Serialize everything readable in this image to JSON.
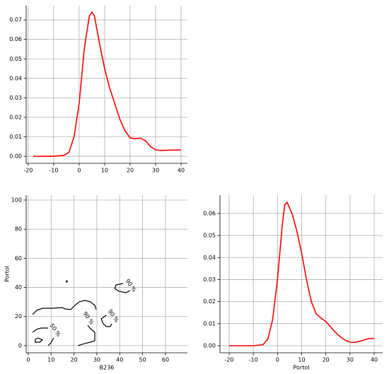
{
  "chart_data": [
    {
      "type": "line",
      "color": "#ff0000",
      "grid": true,
      "x": [
        -18,
        -10,
        -6,
        -4,
        -2,
        0,
        2,
        4,
        5,
        6,
        8,
        10,
        12,
        14,
        16,
        18,
        20,
        22,
        24,
        26,
        28,
        30,
        32,
        36,
        40
      ],
      "values": [
        0,
        0,
        0.0005,
        0.002,
        0.01,
        0.027,
        0.055,
        0.072,
        0.074,
        0.072,
        0.058,
        0.045,
        0.035,
        0.027,
        0.019,
        0.013,
        0.0095,
        0.009,
        0.0093,
        0.008,
        0.005,
        0.0033,
        0.003,
        0.0032,
        0.0033
      ],
      "xlim": [
        -20.8,
        42.5
      ],
      "ylim": [
        -0.0036,
        0.0773
      ],
      "xticks": [
        -20,
        -10,
        0,
        10,
        20,
        30,
        40
      ],
      "yticks": [
        {
          "value": 0,
          "label": "0.00"
        },
        {
          "value": 0.01,
          "label": "0.01"
        },
        {
          "value": 0.02,
          "label": "0.02"
        },
        {
          "value": 0.03,
          "label": "0.03"
        },
        {
          "value": 0.04,
          "label": "0.04"
        },
        {
          "value": 0.05,
          "label": "0.05"
        },
        {
          "value": 0.06,
          "label": "0.06"
        },
        {
          "value": 0.07,
          "label": "0.07"
        }
      ]
    },
    {
      "type": "contour",
      "color": "#000000",
      "grid": true,
      "x_label": "B236",
      "y_label": "Portol",
      "contours": [
        {
          "x": [
            1.9,
            3.7,
            6.2,
            10.8,
            14.9,
            16.1,
            18.6,
            20.4,
            22.3,
            24.8,
            27.2,
            29.1,
            29.7
          ],
          "y": [
            21.4,
            24.3,
            25.7,
            25.7,
            26.2,
            25.2,
            24.8,
            27.7,
            30.1,
            31.1,
            30.1,
            27.7,
            24.8
          ]
        },
        {
          "x": [
            16.5,
            16.9,
            17.1,
            16.7,
            16.5
          ],
          "y": [
            44,
            44.6,
            44,
            43.6,
            44
          ]
        },
        {
          "x": [
            1.9,
            3.7,
            5.6,
            8.7
          ],
          "y": [
            9.2,
            11.2,
            12.1,
            12.1
          ]
        },
        {
          "x": [
            3.1,
            4.3,
            6.2,
            5.0,
            3.1,
            3.1
          ],
          "y": [
            4.4,
            5.3,
            3.9,
            2.4,
            2.4,
            4.4
          ]
        },
        {
          "x": [
            8.7,
            9.9,
            11.1
          ],
          "y": [
            0,
            1.9,
            5.3
          ]
        },
        {
          "x": [
            21.7,
            24.8,
            27.2,
            29.1,
            29.1,
            27.2,
            26.0
          ],
          "y": [
            0,
            1.5,
            2.4,
            3.4,
            9.2,
            11.7,
            14.1
          ]
        },
        {
          "x": [
            34.1,
            31.9,
            32.8,
            34.1,
            35.9,
            36.5
          ],
          "y": [
            20.9,
            18.4,
            15.0,
            13.1,
            13.1,
            15.0
          ]
        },
        {
          "x": [
            41.5,
            38.4,
            37.8,
            39.6,
            42.7,
            44.6
          ],
          "y": [
            42.7,
            41.7,
            39.3,
            37.4,
            36.4,
            37.9
          ]
        }
      ],
      "annotations": [
        {
          "text": "50 %",
          "x": 11.8,
          "y": 10.7
        },
        {
          "text": "90 %",
          "x": 26.3,
          "y": 18.9
        },
        {
          "text": "90 %",
          "x": 37.2,
          "y": 20.4
        },
        {
          "text": "90 %",
          "x": 44.9,
          "y": 41.3
        }
      ],
      "xlim": [
        -0.9,
        69.6
      ],
      "ylim": [
        -4.9,
        103.4
      ],
      "xticks": [
        0,
        10,
        20,
        30,
        40,
        50,
        60
      ],
      "yticks": [
        0,
        20,
        40,
        60,
        80,
        100
      ]
    },
    {
      "type": "line",
      "color": "#ff0000",
      "grid": true,
      "x_label": "Portol",
      "x": [
        -20,
        -10,
        -6,
        -4,
        -2,
        0,
        2,
        3,
        4,
        6,
        8,
        10,
        12,
        14,
        16,
        18,
        20,
        22,
        24,
        26,
        28,
        30,
        32,
        34,
        36,
        38,
        40
      ],
      "values": [
        0,
        0,
        0.0005,
        0.003,
        0.012,
        0.03,
        0.055,
        0.064,
        0.065,
        0.06,
        0.052,
        0.042,
        0.03,
        0.02,
        0.0145,
        0.0125,
        0.011,
        0.0085,
        0.006,
        0.004,
        0.0025,
        0.0016,
        0.0015,
        0.002,
        0.0027,
        0.0033,
        0.0033
      ],
      "xlim": [
        -23.8,
        43.5
      ],
      "ylim": [
        -0.0032,
        0.0683
      ],
      "xticks": [
        -20,
        -10,
        0,
        10,
        20,
        30,
        40
      ],
      "yticks": [
        {
          "value": 0,
          "label": "0.00"
        },
        {
          "value": 0.01,
          "label": "0.01"
        },
        {
          "value": 0.02,
          "label": "0.02"
        },
        {
          "value": 0.03,
          "label": "0.03"
        },
        {
          "value": 0.04,
          "label": "0.04"
        },
        {
          "value": 0.05,
          "label": "0.05"
        },
        {
          "value": 0.06,
          "label": "0.06"
        }
      ]
    }
  ]
}
